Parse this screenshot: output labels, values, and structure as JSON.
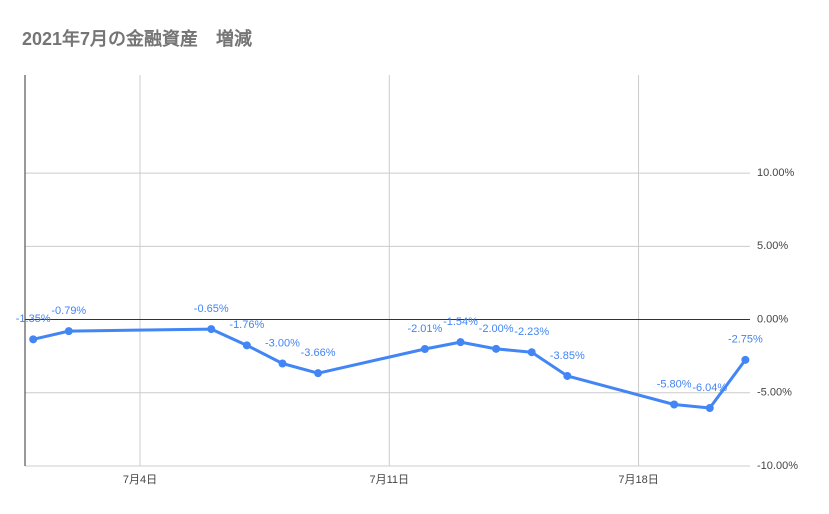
{
  "chart_data": {
    "type": "line",
    "title": "2021年7月の金融資産　増減",
    "x": [
      1,
      2,
      6,
      7,
      8,
      9,
      12,
      13,
      14,
      15,
      16,
      19,
      20,
      21
    ],
    "values": [
      -1.35,
      -0.79,
      -0.65,
      -1.76,
      -3.0,
      -3.66,
      -2.01,
      -1.54,
      -2.0,
      -2.23,
      -3.85,
      -5.8,
      -6.04,
      -2.75
    ],
    "value_labels": [
      "-1.35%",
      "-0.79%",
      "-0.65%",
      "-1.76%",
      "-3.00%",
      "-3.66%",
      "-2.01%",
      "-1.54%",
      "-2.00%",
      "-2.23%",
      "-3.85%",
      "-5.80%",
      "-6.04%",
      "-2.75%"
    ],
    "color": "#4285f4",
    "xlim": [
      0.77,
      21.13
    ],
    "xticks": [
      {
        "value": 4,
        "label": "7月4日"
      },
      {
        "value": 11,
        "label": "7月11日"
      },
      {
        "value": 18,
        "label": "7月18日"
      }
    ],
    "ylim": [
      -10,
      16.7
    ],
    "yticks": [
      {
        "value": -10,
        "label": "-10.00%"
      },
      {
        "value": -5,
        "label": "-5.00%"
      },
      {
        "value": 0,
        "label": "0.00%"
      },
      {
        "value": 5,
        "label": "5.00%"
      },
      {
        "value": 10,
        "label": "10.00%"
      }
    ],
    "grid": true
  }
}
